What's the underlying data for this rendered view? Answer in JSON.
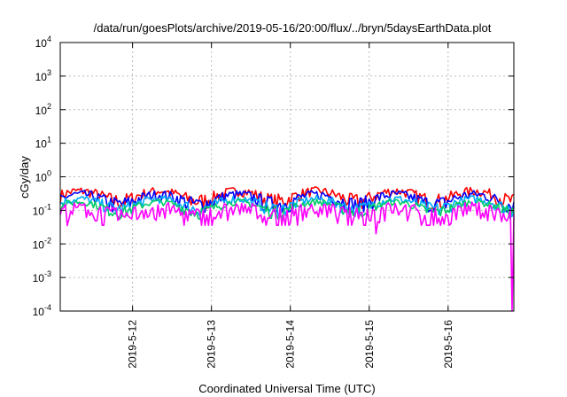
{
  "chart_data": {
    "type": "line",
    "title": "/data/run/goesPlots/archive/2019-05-16/20:00/flux/../bryn/5daysEarthData.plot",
    "xlabel": "Coordinated Universal Time (UTC)",
    "ylabel": "cGy/day",
    "yscale": "log",
    "ylim": [
      0.0001,
      10000
    ],
    "yticks": [
      {
        "value": 0.0001,
        "base": "10",
        "exp": "-4"
      },
      {
        "value": 0.001,
        "base": "10",
        "exp": "-3"
      },
      {
        "value": 0.01,
        "base": "10",
        "exp": "-2"
      },
      {
        "value": 0.1,
        "base": "10",
        "exp": "-1"
      },
      {
        "value": 1,
        "base": "10",
        "exp": "0"
      },
      {
        "value": 10,
        "base": "10",
        "exp": "1"
      },
      {
        "value": 100,
        "base": "10",
        "exp": "2"
      },
      {
        "value": 1000,
        "base": "10",
        "exp": "3"
      },
      {
        "value": 10000,
        "base": "10",
        "exp": "4"
      }
    ],
    "xlim": [
      "2019-05-11T02:00",
      "2019-05-16T20:00"
    ],
    "xticks": [
      {
        "value": "2019-05-12",
        "label": "2019-5-12"
      },
      {
        "value": "2019-05-13",
        "label": "2019-5-13"
      },
      {
        "value": "2019-05-14",
        "label": "2019-5-14"
      },
      {
        "value": "2019-05-15",
        "label": "2019-5-15"
      },
      {
        "value": "2019-05-16",
        "label": "2019-5-16"
      }
    ],
    "grid": true,
    "series": [
      {
        "color": "#ff0000",
        "level": 0.38,
        "spread": 0.12
      },
      {
        "color": "#0000ff",
        "level": 0.3,
        "spread": 0.1
      },
      {
        "color": "#00aaff",
        "level": 0.22,
        "spread": 0.06
      },
      {
        "color": "#00cc66",
        "level": 0.18,
        "spread": 0.04
      },
      {
        "color": "#ff00ff",
        "level": 0.12,
        "spread": 0.06,
        "dips": [
          {
            "x": "2019-05-11T04:00",
            "y": 0.035
          },
          {
            "x": "2019-05-12T07:00",
            "y": 0.05
          },
          {
            "x": "2019-05-13T05:00",
            "y": 0.05
          },
          {
            "x": "2019-05-15T02:00",
            "y": 0.02
          },
          {
            "x": "2019-05-16T01:00",
            "y": 0.04
          },
          {
            "x": "2019-05-16T19:30",
            "y": 0.0001
          }
        ]
      }
    ]
  }
}
